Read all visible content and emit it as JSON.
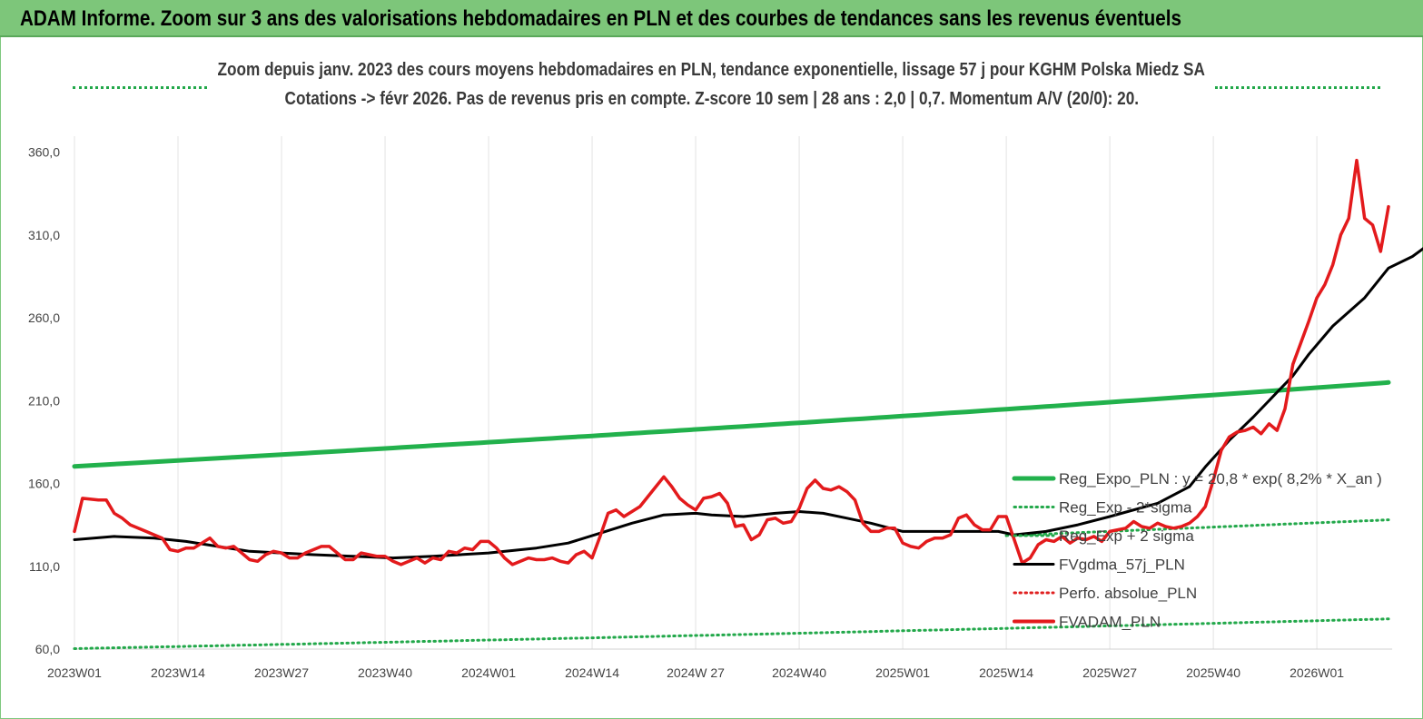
{
  "header": {
    "title": "ADAM Informe. Zoom sur 3 ans des valorisations hebdomadaires en PLN et des courbes de tendances sans les revenus éventuels"
  },
  "chart_data": {
    "type": "line",
    "title": "Zoom depuis janv. 2023 des cours moyens hebdomadaires en PLN, tendance exponentielle, lissage 57 j pour KGHM Polska Miedz SA",
    "subtitle": "Cotations -> févr 2026.  Pas de revenus pris en compte. Z-score 10 sem  |  28 ans : 2,0  |  0,7. Momentum A/V (20/0): 20.",
    "xlabel": "",
    "ylabel": "",
    "ylim": [
      60,
      380
    ],
    "yticks": [
      60,
      110,
      160,
      210,
      260,
      310,
      360
    ],
    "ytick_labels": [
      "60,0",
      "110,0",
      "160,0",
      "210,0",
      "260,0",
      "310,0",
      "360,0"
    ],
    "x_tick_labels": [
      "2023W01",
      "2023W14",
      "2023W27",
      "2023W40",
      "2024W01",
      "2024W14",
      "2024W 27",
      "2024W40",
      "2025W01",
      "2025W14",
      "2025W27",
      "2025W40",
      "2026W01"
    ],
    "x_tick_index": [
      0,
      13,
      26,
      39,
      52,
      65,
      78,
      91,
      104,
      117,
      130,
      143,
      156
    ],
    "x_count": 166,
    "grid": "vertical",
    "legend_position": "bottom-right",
    "series": [
      {
        "name": "Reg_Expo_PLN : y = 20,8 * exp( 8,2% *  X_an )",
        "style": "solid-thick",
        "color": "#22b14c",
        "formula": {
          "start": 170.3,
          "annual_growth_pct": 8.2
        }
      },
      {
        "name": "Reg_Exp - 2*sigma",
        "style": "dotted",
        "color": "#22a84a",
        "formula": {
          "start": 60.3,
          "annual_growth_pct": 8.2
        }
      },
      {
        "name": "Reg_Exp + 2 sigma",
        "style": "dotted",
        "color": "#22a84a",
        "formula": {
          "start_index": 117,
          "start": 128.5,
          "end": 138
        }
      },
      {
        "name": "FVgdma_57j_PLN",
        "style": "solid",
        "color": "#000000",
        "keypoints": [
          [
            0,
            126
          ],
          [
            5,
            128
          ],
          [
            10,
            127
          ],
          [
            14,
            125
          ],
          [
            18,
            122
          ],
          [
            22,
            119
          ],
          [
            26,
            118
          ],
          [
            30,
            117
          ],
          [
            35,
            116
          ],
          [
            40,
            115
          ],
          [
            45,
            116
          ],
          [
            52,
            118
          ],
          [
            58,
            121
          ],
          [
            62,
            124
          ],
          [
            66,
            130
          ],
          [
            70,
            136
          ],
          [
            74,
            141
          ],
          [
            78,
            142
          ],
          [
            80,
            141
          ],
          [
            84,
            140
          ],
          [
            88,
            142
          ],
          [
            91,
            143
          ],
          [
            94,
            142
          ],
          [
            97,
            139
          ],
          [
            100,
            136
          ],
          [
            104,
            131
          ],
          [
            110,
            131
          ],
          [
            116,
            131
          ],
          [
            118,
            129
          ],
          [
            122,
            131
          ],
          [
            126,
            135
          ],
          [
            130,
            140
          ],
          [
            136,
            148
          ],
          [
            140,
            158
          ],
          [
            142,
            170
          ],
          [
            145,
            186
          ],
          [
            148,
            200
          ],
          [
            151,
            215
          ],
          [
            153,
            225
          ],
          [
            155,
            238
          ],
          [
            158,
            255
          ],
          [
            162,
            272
          ],
          [
            165,
            290
          ],
          [
            168,
            297
          ],
          [
            170,
            304
          ]
        ]
      },
      {
        "name": "Perfo. absolue_PLN",
        "style": "dotted",
        "color": "#e02020",
        "keypoints": []
      },
      {
        "name": "FVADAM_PLN",
        "style": "solid-thick",
        "color": "#e31a1c",
        "keypoints": [
          [
            0,
            131
          ],
          [
            1,
            151
          ],
          [
            3,
            150
          ],
          [
            4,
            150
          ],
          [
            5,
            142
          ],
          [
            6,
            139
          ],
          [
            7,
            135
          ],
          [
            9,
            131
          ],
          [
            10,
            129
          ],
          [
            11,
            127
          ],
          [
            12,
            120
          ],
          [
            13,
            119
          ],
          [
            14,
            121
          ],
          [
            15,
            121
          ],
          [
            16,
            124
          ],
          [
            17,
            127
          ],
          [
            18,
            122
          ],
          [
            19,
            121
          ],
          [
            20,
            122
          ],
          [
            21,
            118
          ],
          [
            22,
            114
          ],
          [
            23,
            113
          ],
          [
            24,
            117
          ],
          [
            25,
            119
          ],
          [
            26,
            118
          ],
          [
            27,
            115
          ],
          [
            28,
            115
          ],
          [
            29,
            118
          ],
          [
            30,
            120
          ],
          [
            31,
            122
          ],
          [
            32,
            122
          ],
          [
            33,
            118
          ],
          [
            34,
            114
          ],
          [
            35,
            114
          ],
          [
            36,
            118
          ],
          [
            37,
            117
          ],
          [
            38,
            116
          ],
          [
            39,
            116
          ],
          [
            40,
            113
          ],
          [
            41,
            111
          ],
          [
            42,
            113
          ],
          [
            43,
            115
          ],
          [
            44,
            112
          ],
          [
            45,
            115
          ],
          [
            46,
            114
          ],
          [
            47,
            119
          ],
          [
            48,
            118
          ],
          [
            49,
            121
          ],
          [
            50,
            120
          ],
          [
            51,
            125
          ],
          [
            52,
            125
          ],
          [
            53,
            121
          ],
          [
            54,
            115
          ],
          [
            55,
            111
          ],
          [
            56,
            113
          ],
          [
            57,
            115
          ],
          [
            58,
            114
          ],
          [
            59,
            114
          ],
          [
            60,
            115
          ],
          [
            61,
            113
          ],
          [
            62,
            112
          ],
          [
            63,
            117
          ],
          [
            64,
            119
          ],
          [
            65,
            115
          ],
          [
            66,
            128
          ],
          [
            67,
            142
          ],
          [
            68,
            144
          ],
          [
            69,
            140
          ],
          [
            70,
            143
          ],
          [
            71,
            146
          ],
          [
            72,
            152
          ],
          [
            73,
            158
          ],
          [
            74,
            164
          ],
          [
            75,
            158
          ],
          [
            76,
            151
          ],
          [
            77,
            147
          ],
          [
            78,
            144
          ],
          [
            79,
            151
          ],
          [
            80,
            152
          ],
          [
            81,
            154
          ],
          [
            82,
            148
          ],
          [
            83,
            134
          ],
          [
            84,
            135
          ],
          [
            85,
            126
          ],
          [
            86,
            129
          ],
          [
            87,
            138
          ],
          [
            88,
            139
          ],
          [
            89,
            136
          ],
          [
            90,
            137
          ],
          [
            91,
            145
          ],
          [
            92,
            157
          ],
          [
            93,
            162
          ],
          [
            94,
            157
          ],
          [
            95,
            156
          ],
          [
            96,
            158
          ],
          [
            97,
            155
          ],
          [
            98,
            150
          ],
          [
            99,
            136
          ],
          [
            100,
            131
          ],
          [
            101,
            131
          ],
          [
            102,
            133
          ],
          [
            103,
            133
          ],
          [
            104,
            124
          ],
          [
            105,
            122
          ],
          [
            106,
            121
          ],
          [
            107,
            125
          ],
          [
            108,
            127
          ],
          [
            109,
            127
          ],
          [
            110,
            129
          ],
          [
            111,
            139
          ],
          [
            112,
            141
          ],
          [
            113,
            135
          ],
          [
            114,
            132
          ],
          [
            115,
            132
          ],
          [
            116,
            140
          ],
          [
            117,
            140
          ],
          [
            118,
            126
          ],
          [
            119,
            112
          ],
          [
            120,
            115
          ],
          [
            121,
            123
          ],
          [
            122,
            126
          ],
          [
            123,
            125
          ],
          [
            124,
            128
          ],
          [
            125,
            124
          ],
          [
            126,
            127
          ],
          [
            127,
            126
          ],
          [
            128,
            128
          ],
          [
            129,
            125
          ],
          [
            130,
            131
          ],
          [
            131,
            132
          ],
          [
            132,
            133
          ],
          [
            133,
            137
          ],
          [
            134,
            134
          ],
          [
            135,
            133
          ],
          [
            136,
            136
          ],
          [
            137,
            134
          ],
          [
            138,
            133
          ],
          [
            139,
            134
          ],
          [
            140,
            136
          ],
          [
            141,
            140
          ],
          [
            142,
            146
          ],
          [
            143,
            162
          ],
          [
            144,
            180
          ],
          [
            145,
            188
          ],
          [
            146,
            191
          ],
          [
            147,
            192
          ],
          [
            148,
            194
          ],
          [
            149,
            190
          ],
          [
            150,
            196
          ],
          [
            151,
            192
          ],
          [
            152,
            205
          ],
          [
            153,
            232
          ],
          [
            154,
            245
          ],
          [
            155,
            258
          ],
          [
            156,
            272
          ],
          [
            157,
            280
          ],
          [
            158,
            292
          ],
          [
            159,
            310
          ],
          [
            160,
            320
          ],
          [
            161,
            355
          ],
          [
            162,
            320
          ],
          [
            163,
            316
          ],
          [
            164,
            300
          ],
          [
            165,
            327
          ]
        ]
      }
    ]
  }
}
